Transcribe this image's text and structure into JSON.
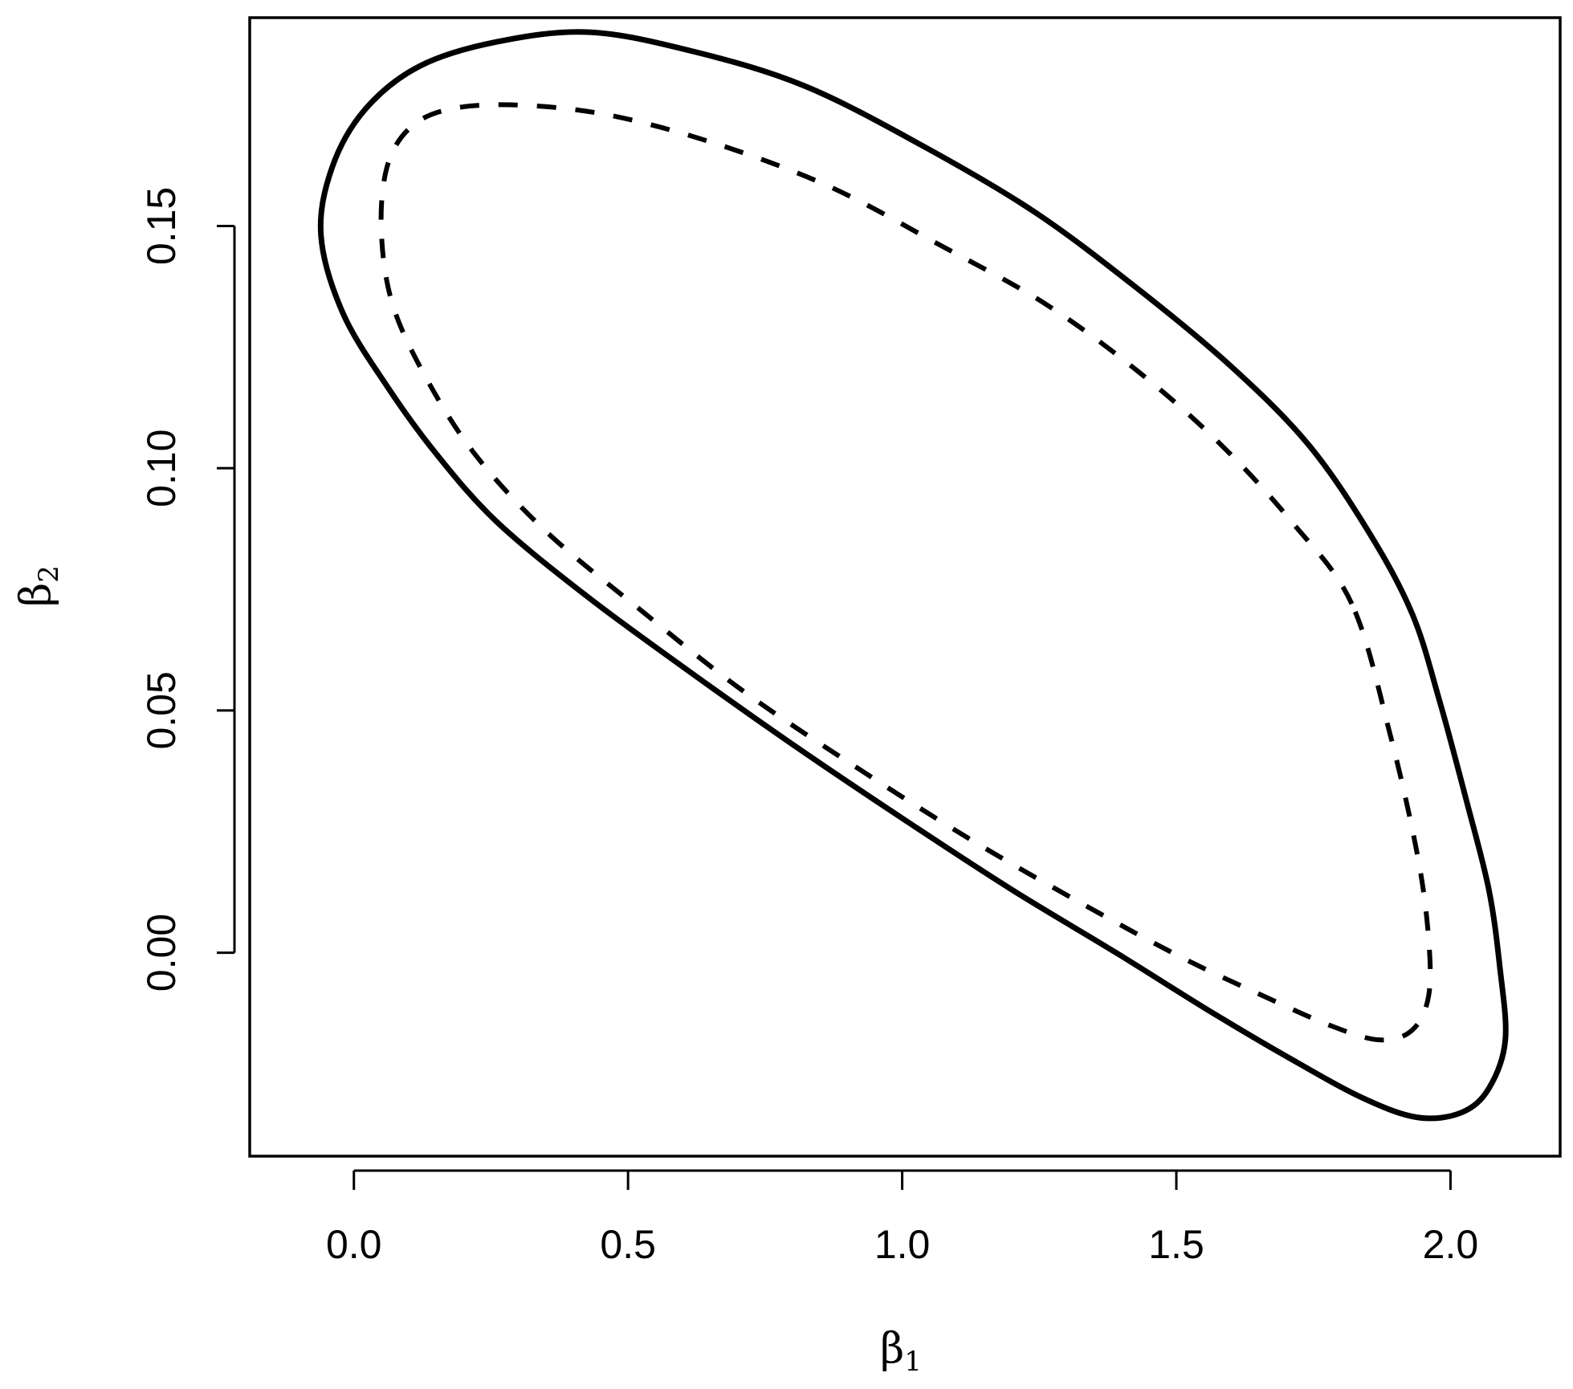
{
  "chart_data": {
    "type": "line",
    "xlabel": "β",
    "xlabel_subscript": "1",
    "ylabel": "β",
    "ylabel_subscript": "2",
    "xlim": [
      -0.19,
      2.2
    ],
    "ylim": [
      -0.042,
      0.193
    ],
    "x_ticks": [
      "0.0",
      "0.5",
      "1.0",
      "1.5",
      "2.0"
    ],
    "y_ticks": [
      "0.00",
      "0.05",
      "0.10",
      "0.15"
    ],
    "grid": false,
    "series": [
      {
        "style": "solid",
        "x": [
          1.98,
          1.93,
          1.85,
          1.74,
          1.6,
          1.43,
          1.24,
          1.03,
          0.82,
          0.62,
          0.43,
          0.26,
          0.12,
          0.02,
          -0.04,
          -0.06,
          -0.02,
          0.06,
          0.15,
          0.26,
          0.42,
          0.6,
          0.8,
          1.01,
          1.2,
          1.39,
          1.56,
          1.71,
          1.84,
          1.94,
          2.02,
          2.07,
          2.1,
          2.09,
          2.07,
          2.03,
          1.98
        ],
        "y": [
          0.052,
          0.07,
          0.087,
          0.105,
          0.121,
          0.137,
          0.153,
          0.167,
          0.179,
          0.186,
          0.19,
          0.188,
          0.183,
          0.174,
          0.162,
          0.148,
          0.132,
          0.117,
          0.103,
          0.089,
          0.074,
          0.059,
          0.043,
          0.027,
          0.013,
          0.0,
          -0.012,
          -0.022,
          -0.03,
          -0.034,
          -0.033,
          -0.028,
          -0.018,
          -0.003,
          0.013,
          0.031,
          0.052
        ]
      },
      {
        "style": "dashed",
        "x": [
          1.82,
          1.71,
          1.58,
          1.43,
          1.26,
          1.07,
          0.87,
          0.66,
          0.46,
          0.29,
          0.17,
          0.1,
          0.06,
          0.05,
          0.07,
          0.13,
          0.22,
          0.35,
          0.52,
          0.71,
          0.92,
          1.13,
          1.33,
          1.51,
          1.66,
          1.78,
          1.87,
          1.93,
          1.96,
          1.96,
          1.94,
          1.89,
          1.82
        ],
        "y": [
          0.072,
          0.089,
          0.105,
          0.12,
          0.134,
          0.146,
          0.158,
          0.167,
          0.173,
          0.175,
          0.174,
          0.17,
          0.162,
          0.149,
          0.134,
          0.119,
          0.103,
          0.087,
          0.071,
          0.054,
          0.038,
          0.023,
          0.01,
          -0.001,
          -0.009,
          -0.015,
          -0.018,
          -0.016,
          -0.009,
          0.003,
          0.02,
          0.045,
          0.072
        ]
      }
    ]
  }
}
